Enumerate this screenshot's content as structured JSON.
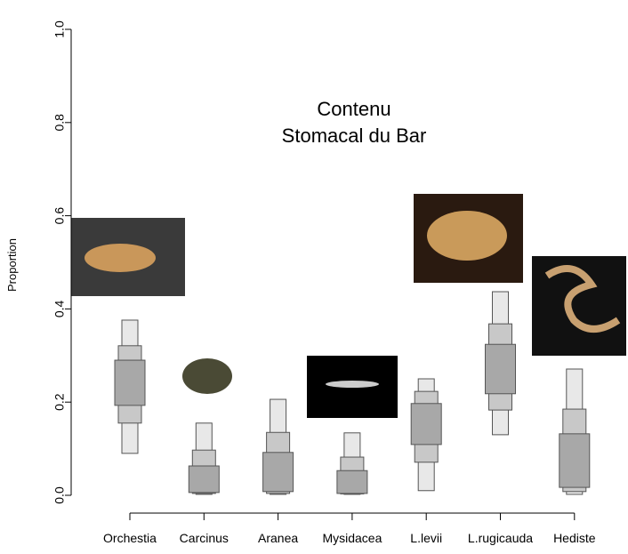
{
  "chart_data": {
    "type": "interval-boxes",
    "title": "Contenu\nStomacal du Bar",
    "y_label": "Proportion",
    "categories": [
      "Orchestia",
      "Carcinus",
      "Aranea",
      "Mysidacea",
      "L.levii",
      "L.rugicauda",
      "Hediste"
    ],
    "series": [
      {
        "color": "#e8e8e8",
        "low": [
          0.09,
          0.002,
          0.002,
          0.002,
          0.01,
          0.13,
          0.002
        ],
        "high": [
          0.376,
          0.155,
          0.206,
          0.134,
          0.25,
          0.437,
          0.271
        ]
      },
      {
        "color": "#c8c8c8",
        "low": [
          0.155,
          0.004,
          0.004,
          0.003,
          0.071,
          0.183,
          0.008
        ],
        "high": [
          0.321,
          0.097,
          0.135,
          0.082,
          0.223,
          0.368,
          0.185
        ]
      },
      {
        "color": "#a8a8a8",
        "low": [
          0.193,
          0.006,
          0.008,
          0.004,
          0.109,
          0.218,
          0.017
        ],
        "high": [
          0.29,
          0.063,
          0.092,
          0.053,
          0.197,
          0.324,
          0.132
        ]
      }
    ],
    "ylim": [
      0,
      1
    ],
    "yticks": [
      {
        "value": 0,
        "label": "0.0"
      },
      0.2,
      0.4,
      0.6,
      0.8,
      {
        "value": 1,
        "label": "1.0"
      }
    ]
  }
}
